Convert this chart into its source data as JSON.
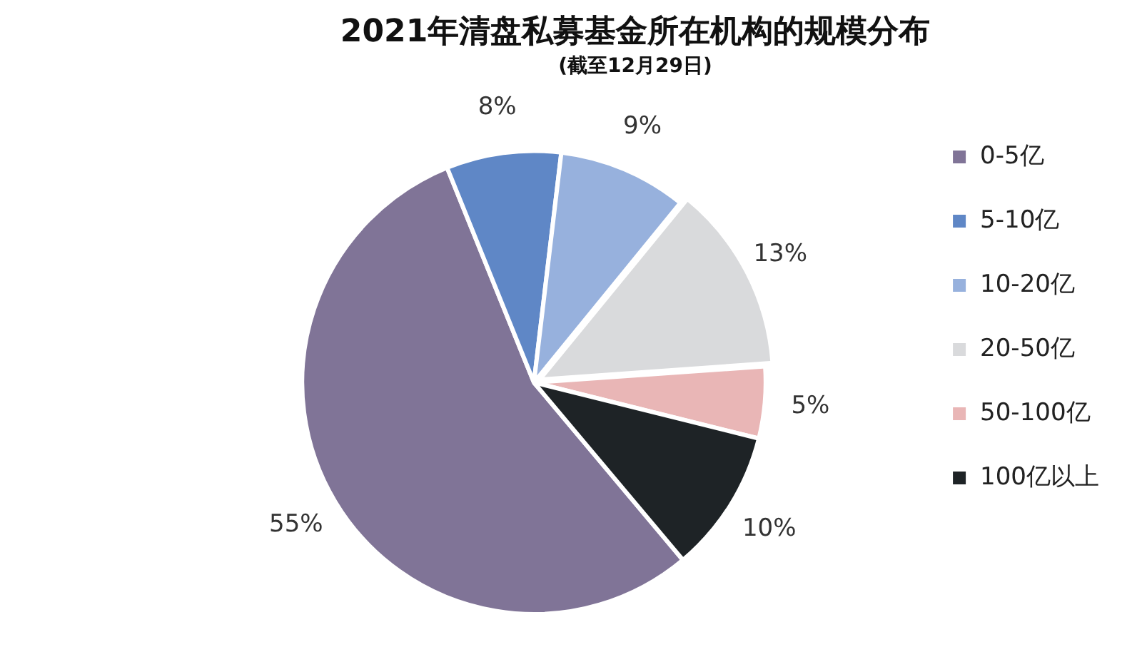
{
  "chart_data": {
    "type": "pie",
    "title": "2021年清盘私募基金所在机构的规模分布",
    "subtitle": "(截至12月29日)",
    "categories": [
      "0-5亿",
      "5-10亿",
      "10-20亿",
      "20-50亿",
      "50-100亿",
      "100亿以上"
    ],
    "values": [
      55,
      8,
      9,
      13,
      5,
      10
    ],
    "value_labels": [
      "55%",
      "8%",
      "9%",
      "13%",
      "5%",
      "10%"
    ],
    "colors": [
      "#807497",
      "#5f87c6",
      "#97b1dd",
      "#d9dadc",
      "#e9b6b6",
      "#1e2326"
    ],
    "legend": "right"
  }
}
